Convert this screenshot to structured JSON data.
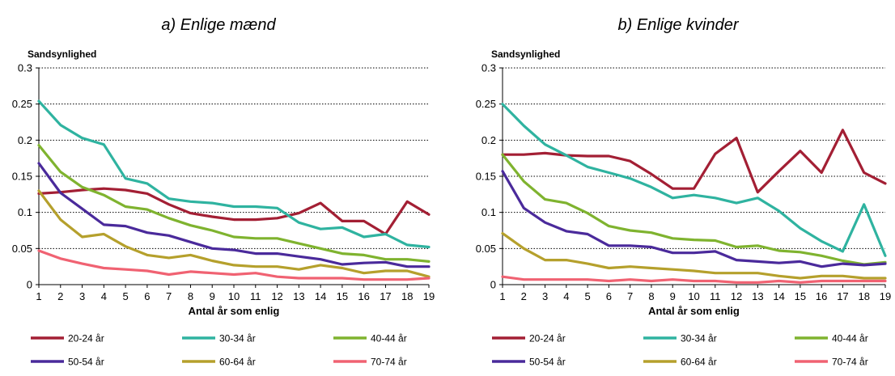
{
  "chart_data": [
    {
      "type": "line",
      "title": "a) Enlige mænd",
      "ylabel": "Sandsynlighed",
      "xlabel": "Antal år som enlig",
      "x": [
        1,
        2,
        3,
        4,
        5,
        6,
        7,
        8,
        9,
        10,
        11,
        12,
        13,
        14,
        15,
        16,
        17,
        18,
        19
      ],
      "ylim": [
        0,
        0.3
      ],
      "yticks": [
        "0",
        "0.05",
        "0.1",
        "0.15",
        "0.2",
        "0.25",
        "0.3"
      ],
      "grid": "horizontal dotted",
      "legend": "bottom",
      "series": [
        {
          "name": "20-24 år",
          "color": "#a31f34",
          "values": [
            0.126,
            0.128,
            0.131,
            0.133,
            0.131,
            0.126,
            0.111,
            0.099,
            0.094,
            0.09,
            0.09,
            0.092,
            0.099,
            0.113,
            0.088,
            0.088,
            0.07,
            0.115,
            0.097
          ]
        },
        {
          "name": "30-34 år",
          "color": "#2fb3a0",
          "values": [
            0.254,
            0.221,
            0.203,
            0.194,
            0.147,
            0.14,
            0.119,
            0.115,
            0.113,
            0.108,
            0.108,
            0.106,
            0.086,
            0.077,
            0.079,
            0.066,
            0.07,
            0.055,
            0.052
          ]
        },
        {
          "name": "40-44 år",
          "color": "#7fb32f",
          "values": [
            0.193,
            0.156,
            0.135,
            0.124,
            0.108,
            0.104,
            0.092,
            0.082,
            0.075,
            0.066,
            0.064,
            0.064,
            0.057,
            0.05,
            0.043,
            0.041,
            0.035,
            0.035,
            0.032
          ]
        },
        {
          "name": "50-54 år",
          "color": "#4a2a9b",
          "values": [
            0.168,
            0.127,
            0.105,
            0.083,
            0.081,
            0.072,
            0.068,
            0.059,
            0.05,
            0.048,
            0.043,
            0.043,
            0.039,
            0.035,
            0.028,
            0.03,
            0.031,
            0.025,
            0.025
          ]
        },
        {
          "name": "60-64 år",
          "color": "#b5a02c",
          "values": [
            0.13,
            0.09,
            0.066,
            0.07,
            0.053,
            0.041,
            0.037,
            0.041,
            0.033,
            0.027,
            0.025,
            0.025,
            0.021,
            0.027,
            0.023,
            0.016,
            0.019,
            0.019,
            0.011
          ]
        },
        {
          "name": "70-74 år",
          "color": "#f06272",
          "values": [
            0.047,
            0.036,
            0.029,
            0.023,
            0.021,
            0.019,
            0.014,
            0.018,
            0.016,
            0.014,
            0.016,
            0.011,
            0.009,
            0.009,
            0.009,
            0.007,
            0.007,
            0.007,
            0.009
          ]
        }
      ]
    },
    {
      "type": "line",
      "title": "b) Enlige kvinder",
      "ylabel": "Sandsynlighed",
      "xlabel": "Antal år som enlig",
      "x": [
        1,
        2,
        3,
        4,
        5,
        6,
        7,
        8,
        9,
        10,
        11,
        12,
        13,
        14,
        15,
        16,
        17,
        18,
        19
      ],
      "ylim": [
        0,
        0.3
      ],
      "yticks": [
        "0",
        "0.05",
        "0.1",
        "0.15",
        "0.2",
        "0.25",
        "0.3"
      ],
      "grid": "horizontal dotted",
      "legend": "bottom",
      "series": [
        {
          "name": "20-24 år",
          "color": "#a31f34",
          "values": [
            0.18,
            0.18,
            0.182,
            0.179,
            0.178,
            0.178,
            0.171,
            0.153,
            0.133,
            0.133,
            0.181,
            0.203,
            0.128,
            0.157,
            0.185,
            0.155,
            0.214,
            0.155,
            0.14
          ]
        },
        {
          "name": "30-34 år",
          "color": "#2fb3a0",
          "values": [
            0.25,
            0.22,
            0.194,
            0.179,
            0.163,
            0.155,
            0.147,
            0.135,
            0.12,
            0.124,
            0.12,
            0.113,
            0.12,
            0.102,
            0.078,
            0.06,
            0.046,
            0.111,
            0.04
          ]
        },
        {
          "name": "40-44 år",
          "color": "#7fb32f",
          "values": [
            0.18,
            0.143,
            0.118,
            0.113,
            0.099,
            0.081,
            0.075,
            0.072,
            0.064,
            0.062,
            0.061,
            0.052,
            0.054,
            0.047,
            0.045,
            0.04,
            0.033,
            0.028,
            0.031
          ]
        },
        {
          "name": "50-54 år",
          "color": "#4a2a9b",
          "values": [
            0.157,
            0.106,
            0.086,
            0.074,
            0.07,
            0.054,
            0.054,
            0.052,
            0.044,
            0.044,
            0.046,
            0.034,
            0.032,
            0.03,
            0.032,
            0.025,
            0.029,
            0.027,
            0.029
          ]
        },
        {
          "name": "60-64 år",
          "color": "#b5a02c",
          "values": [
            0.071,
            0.05,
            0.034,
            0.034,
            0.029,
            0.023,
            0.025,
            0.023,
            0.021,
            0.019,
            0.016,
            0.016,
            0.016,
            0.012,
            0.009,
            0.012,
            0.012,
            0.009,
            0.009
          ]
        },
        {
          "name": "70-74 år",
          "color": "#f06272",
          "values": [
            0.011,
            0.007,
            0.007,
            0.007,
            0.007,
            0.005,
            0.007,
            0.005,
            0.007,
            0.005,
            0.005,
            0.003,
            0.003,
            0.005,
            0.003,
            0.005,
            0.005,
            0.005,
            0.005
          ]
        }
      ]
    }
  ]
}
